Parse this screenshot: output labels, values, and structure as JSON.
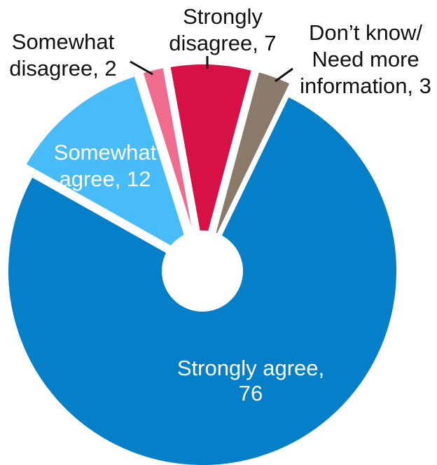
{
  "chart_data": {
    "type": "pie",
    "variant": "donut-with-exploded-slices",
    "total": 100,
    "slices": [
      {
        "key": "dont_know",
        "label_lines": [
          "Don’t know/",
          "Need more",
          "information, 3"
        ],
        "value": 3,
        "color": "#8a7a6a",
        "label_color": "#111111"
      },
      {
        "key": "strongly_agree",
        "label_lines": [
          "Strongly agree,",
          "76"
        ],
        "value": 76,
        "color": "#0580c8",
        "label_color": "#ffffff"
      },
      {
        "key": "somewhat_agree",
        "label_lines": [
          "Somewhat",
          "agree, 12"
        ],
        "value": 12,
        "color": "#47bcf8",
        "label_color": "#ffffff"
      },
      {
        "key": "somewhat_disagree",
        "label_lines": [
          "Somewhat",
          "disagree, 2"
        ],
        "value": 2,
        "color": "#f06c8e",
        "label_color": "#111111"
      },
      {
        "key": "strongly_disagree",
        "label_lines": [
          "Strongly",
          "disagree, 7"
        ],
        "value": 7,
        "color": "#d71146",
        "label_color": "#111111"
      }
    ],
    "start_angle_deg": 15,
    "direction": "clockwise",
    "center_hole": true,
    "legend": "none"
  }
}
